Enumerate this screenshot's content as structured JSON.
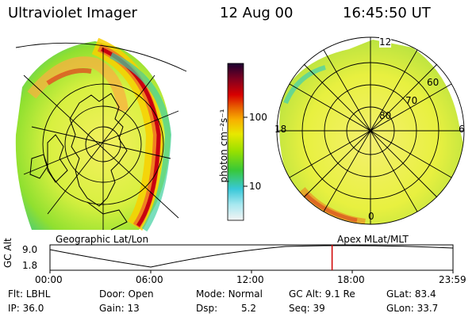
{
  "header": {
    "instrument": "Ultraviolet Imager",
    "date": "12 Aug 00",
    "time": "16:45:50 UT"
  },
  "left_panel": {
    "caption": "Geographic Lat/Lon"
  },
  "right_panel": {
    "caption": "Apex MLat/MLT",
    "mlt_labels": {
      "top": "12",
      "left": "18",
      "right": "6",
      "bottom": "0"
    },
    "lat_labels": [
      "80",
      "70",
      "60"
    ]
  },
  "colorbar": {
    "unit": "photon cm⁻²s⁻¹",
    "ticks": [
      "100",
      "10"
    ],
    "colors": [
      "#f4f4f4",
      "#a8e8f0",
      "#38c8d8",
      "#38c838",
      "#98e000",
      "#e8e800",
      "#f8b000",
      "#e86000",
      "#d80000",
      "#800020",
      "#1a0030"
    ]
  },
  "altitude_plot": {
    "ylabel": "GC Alt",
    "yticks": [
      "9.0",
      "1.8"
    ],
    "xticks": [
      "00:00",
      "06:00",
      "12:00",
      "18:00",
      "23:59"
    ],
    "current_time_fraction": 0.7,
    "marker_color": "#d00000"
  },
  "status": {
    "row1": [
      {
        "label": "Flt:",
        "value": "LBHL"
      },
      {
        "label": "Door:",
        "value": "Open"
      },
      {
        "label": "Mode:",
        "value": "Normal"
      },
      {
        "label": "GC Alt:",
        "value": "9.1 Re"
      },
      {
        "label": "GLat:",
        "value": "83.4"
      }
    ],
    "row2": [
      {
        "label": "IP:",
        "value": "36.0"
      },
      {
        "label": "Gain:",
        "value": "13"
      },
      {
        "label": "Dsp:",
        "value": "5.2"
      },
      {
        "label": "Seq:",
        "value": "39"
      },
      {
        "label": "GLon:",
        "value": "33.7"
      }
    ]
  }
}
